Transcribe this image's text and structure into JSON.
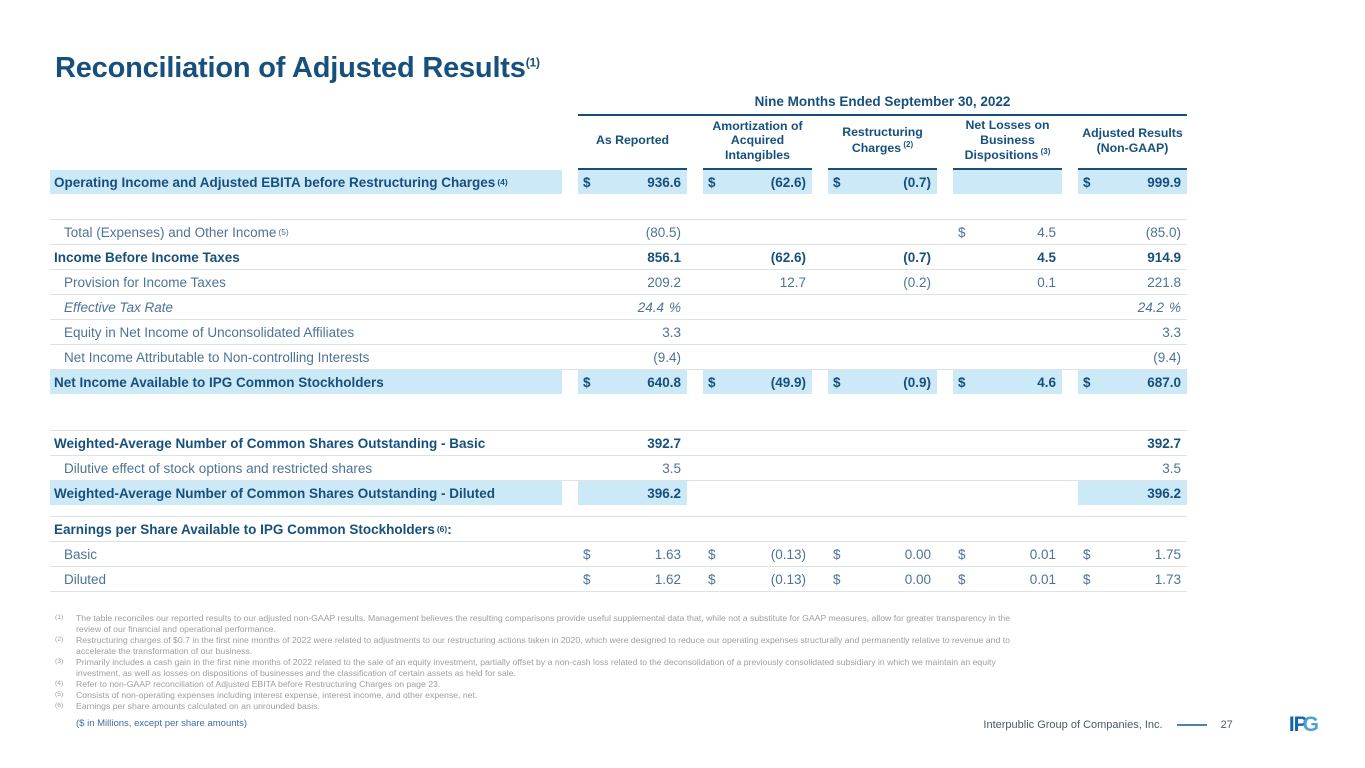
{
  "title": {
    "text": "Reconciliation of Adjusted Results",
    "superscript": "(1)"
  },
  "table": {
    "span_header": "Nine Months Ended September 30, 2022",
    "columns": [
      {
        "label": "As Reported"
      },
      {
        "label": "Amortization of Acquired Intangibles"
      },
      {
        "label": "Restructuring Charges",
        "sup": "(2)"
      },
      {
        "label": "Net Losses on Business Dispositions",
        "sup": "(3)"
      },
      {
        "label": "Adjusted Results (Non-GAAP)"
      }
    ],
    "rows": [
      {
        "label": "Operating Income and Adjusted EBITA before Restructuring Charges",
        "sup": "(4)",
        "style": "bold",
        "highlight_label": true,
        "cells": [
          {
            "d": "$",
            "v": "936.6",
            "hl": true
          },
          {
            "d": "$",
            "v": "(62.6)",
            "hl": true
          },
          {
            "d": "$",
            "v": "(0.7)",
            "hl": true
          },
          {
            "hl": true
          },
          {
            "d": "$",
            "v": "999.9",
            "hl": true
          }
        ]
      },
      {
        "spacer": true,
        "height": 25
      },
      {
        "label": "Total (Expenses) and Other Income",
        "sup": "(5)",
        "style": "regular",
        "cells": [
          {
            "v": "(80.5)"
          },
          {},
          {},
          {
            "d": "$",
            "v": "4.5"
          },
          {
            "v": "(85.0)"
          }
        ]
      },
      {
        "label": "Income Before Income Taxes",
        "style": "bold",
        "cells": [
          {
            "v": "856.1"
          },
          {
            "v": "(62.6)"
          },
          {
            "v": "(0.7)"
          },
          {
            "v": "4.5"
          },
          {
            "v": "914.9"
          }
        ]
      },
      {
        "label": "Provision for Income Taxes",
        "style": "regular",
        "cells": [
          {
            "v": "209.2"
          },
          {
            "v": "12.7"
          },
          {
            "v": "(0.2)"
          },
          {
            "v": "0.1"
          },
          {
            "v": "221.8"
          }
        ]
      },
      {
        "label": "Effective Tax Rate",
        "style": "italic",
        "cells": [
          {
            "v": "24.4",
            "s": "%"
          },
          {},
          {},
          {},
          {
            "v": "24.2",
            "s": "%"
          }
        ]
      },
      {
        "label": "Equity in Net Income of Unconsolidated Affiliates",
        "style": "regular",
        "cells": [
          {
            "v": "3.3"
          },
          {},
          {},
          {},
          {
            "v": "3.3"
          }
        ]
      },
      {
        "label": "Net Income Attributable to Non-controlling Interests",
        "style": "regular",
        "cells": [
          {
            "v": "(9.4)"
          },
          {},
          {},
          {},
          {
            "v": "(9.4)"
          }
        ]
      },
      {
        "label": "Net Income Available to IPG Common Stockholders",
        "style": "bold",
        "highlight_label": true,
        "cells": [
          {
            "d": "$",
            "v": "640.8",
            "hl": true
          },
          {
            "d": "$",
            "v": "(49.9)",
            "hl": true
          },
          {
            "d": "$",
            "v": "(0.9)",
            "hl": true
          },
          {
            "d": "$",
            "v": "4.6",
            "hl": true
          },
          {
            "d": "$",
            "v": "687.0",
            "hl": true
          }
        ]
      },
      {
        "spacer": true,
        "height": 36
      },
      {
        "label": "Weighted-Average Number of Common Shares Outstanding - Basic",
        "style": "bold",
        "cells": [
          {
            "v": "392.7"
          },
          {},
          {},
          {},
          {
            "v": "392.7"
          }
        ]
      },
      {
        "label": "Dilutive effect of stock options and restricted shares",
        "style": "regular",
        "cells": [
          {
            "v": "3.5"
          },
          {},
          {},
          {},
          {
            "v": "3.5"
          }
        ]
      },
      {
        "label": "Weighted-Average Number of Common Shares Outstanding - Diluted",
        "style": "bold",
        "highlight_label": true,
        "cells": [
          {
            "v": "396.2",
            "hl": true
          },
          {},
          {},
          {},
          {
            "v": "396.2",
            "hl": true
          }
        ]
      },
      {
        "spacer": true,
        "height": 11
      },
      {
        "label": "Earnings per Share Available to IPG Common Stockholders",
        "sup": "(6)",
        "after": ":",
        "style": "bold",
        "cells": []
      },
      {
        "label": "Basic",
        "style": "regular",
        "cells": [
          {
            "d": "$",
            "v": "1.63"
          },
          {
            "d": "$",
            "v": "(0.13)"
          },
          {
            "d": "$",
            "v": "0.00"
          },
          {
            "d": "$",
            "v": "0.01"
          },
          {
            "d": "$",
            "v": "1.75"
          }
        ]
      },
      {
        "label": "Diluted",
        "style": "regular",
        "cells": [
          {
            "d": "$",
            "v": "1.62"
          },
          {
            "d": "$",
            "v": "(0.13)"
          },
          {
            "d": "$",
            "v": "0.00"
          },
          {
            "d": "$",
            "v": "0.01"
          },
          {
            "d": "$",
            "v": "1.73"
          }
        ]
      }
    ]
  },
  "footnotes": [
    {
      "num": "(1)",
      "text": "The table reconciles our reported results to our adjusted non-GAAP results. Management believes the resulting comparisons provide useful supplemental data that, while not a substitute for GAAP measures, allow for greater transparency in the review of our financial and operational performance."
    },
    {
      "num": "(2)",
      "text": "Restructuring charges of $0.7 in the first nine months of 2022 were related to adjustments to our restructuring actions taken in 2020, which were designed to reduce our operating expenses structurally and permanently relative to revenue and to accelerate the transformation of our business."
    },
    {
      "num": "(3)",
      "text": "Primarily includes a cash gain in the first nine months of 2022 related to the sale of an equity investment, partially offset by a non-cash loss related to the deconsolidation of a previously consolidated subsidiary in which we maintain an equity investment, as well as losses on dispositions of businesses and the classification of certain assets as held for sale."
    },
    {
      "num": "(4)",
      "text": "Refer to non-GAAP reconciliation of Adjusted EBITA before Restructuring Charges on page 23."
    },
    {
      "num": "(5)",
      "text": "Consists of non-operating expenses including interest expense, interest income, and other expense, net."
    },
    {
      "num": "(6)",
      "text": "Earnings per share amounts calculated on an unrounded basis."
    }
  ],
  "units_note": "($ in Millions, except per share amounts)",
  "footer": {
    "company": "Interpublic Group of Companies, Inc.",
    "page": "27",
    "logo_ip": "IP",
    "logo_g": "G"
  },
  "colors": {
    "accent_navy": "#17507C",
    "highlight_blue": "#CCE9F7",
    "body_blue": "#4E7397",
    "footnote_gray": "#9E9E9E",
    "note_blue": "#3E6CA4",
    "logo_dark_blue": "#1464A8",
    "logo_light_blue": "#4AA0D8"
  }
}
